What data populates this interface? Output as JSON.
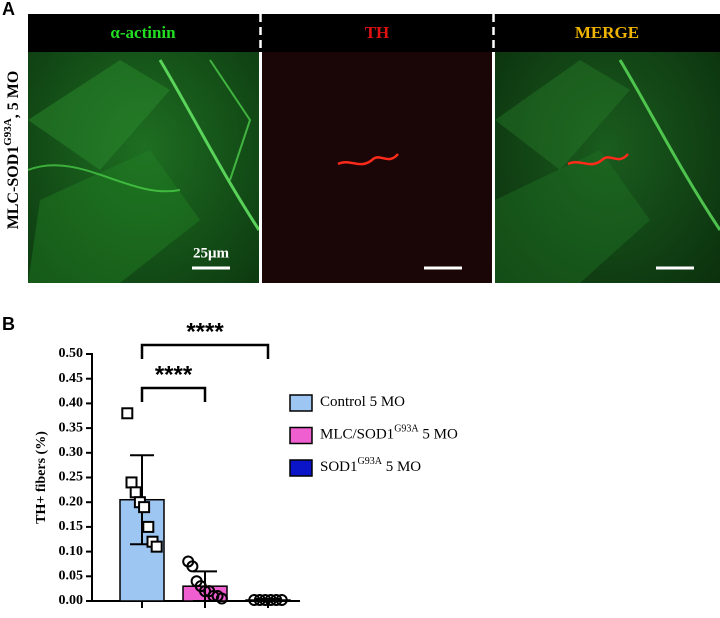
{
  "figure": {
    "panel_a_label": "A",
    "panel_b_label": "B",
    "row_label": [
      "MLC-SOD1",
      "G93A",
      ", 5 MO"
    ],
    "image_titles": [
      {
        "text": "α-actinin",
        "color": "#22dd22"
      },
      {
        "text": "TH",
        "color": "#dd1111"
      },
      {
        "text": "MERGE",
        "color": "#f0b400"
      }
    ],
    "scale_label": "25μm"
  },
  "chart_data": {
    "type": "bar",
    "ylabel": "TH+ fibers (%)",
    "ylim": [
      0,
      0.5
    ],
    "yticks": [
      {
        "value": 0,
        "label": "0.00"
      },
      {
        "value": 0.05,
        "label": "0.05"
      },
      {
        "value": 0.1,
        "label": "0.10"
      },
      {
        "value": 0.15,
        "label": "0.15"
      },
      {
        "value": 0.2,
        "label": "0.20"
      },
      {
        "value": 0.25,
        "label": "0.25"
      },
      {
        "value": 0.3,
        "label": "0.30"
      },
      {
        "value": 0.35,
        "label": "0.35"
      },
      {
        "value": 0.4,
        "label": "0.40"
      },
      {
        "value": 0.45,
        "label": "0.45"
      },
      {
        "value": 0.5,
        "label": "0.50"
      }
    ],
    "series": [
      {
        "name": [
          "Control",
          "",
          " 5 MO"
        ],
        "color": "#9ec6f2",
        "marker": "square",
        "values": [
          0.205
        ],
        "error": [
          0.09
        ],
        "points": [
          0.38,
          0.24,
          0.22,
          0.2,
          0.19,
          0.15,
          0.12,
          0.11
        ]
      },
      {
        "name": [
          "MLC/SOD1",
          "G93A",
          " 5 MO"
        ],
        "color": "#f05fd0",
        "marker": "circle",
        "values": [
          0.03
        ],
        "error": [
          0.03
        ],
        "points": [
          0.08,
          0.07,
          0.04,
          0.03,
          0.02,
          0.02,
          0.01,
          0.01,
          0.005
        ]
      },
      {
        "name": [
          "SOD1",
          "G93A",
          " 5 MO"
        ],
        "color": "#0a14c8",
        "marker": "circle",
        "values": [
          0.002
        ],
        "error": [
          0.002
        ],
        "points": [
          0.002,
          0.002,
          0.002,
          0.002,
          0.002,
          0.002
        ]
      }
    ],
    "annotations": [
      "****",
      "****"
    ]
  }
}
